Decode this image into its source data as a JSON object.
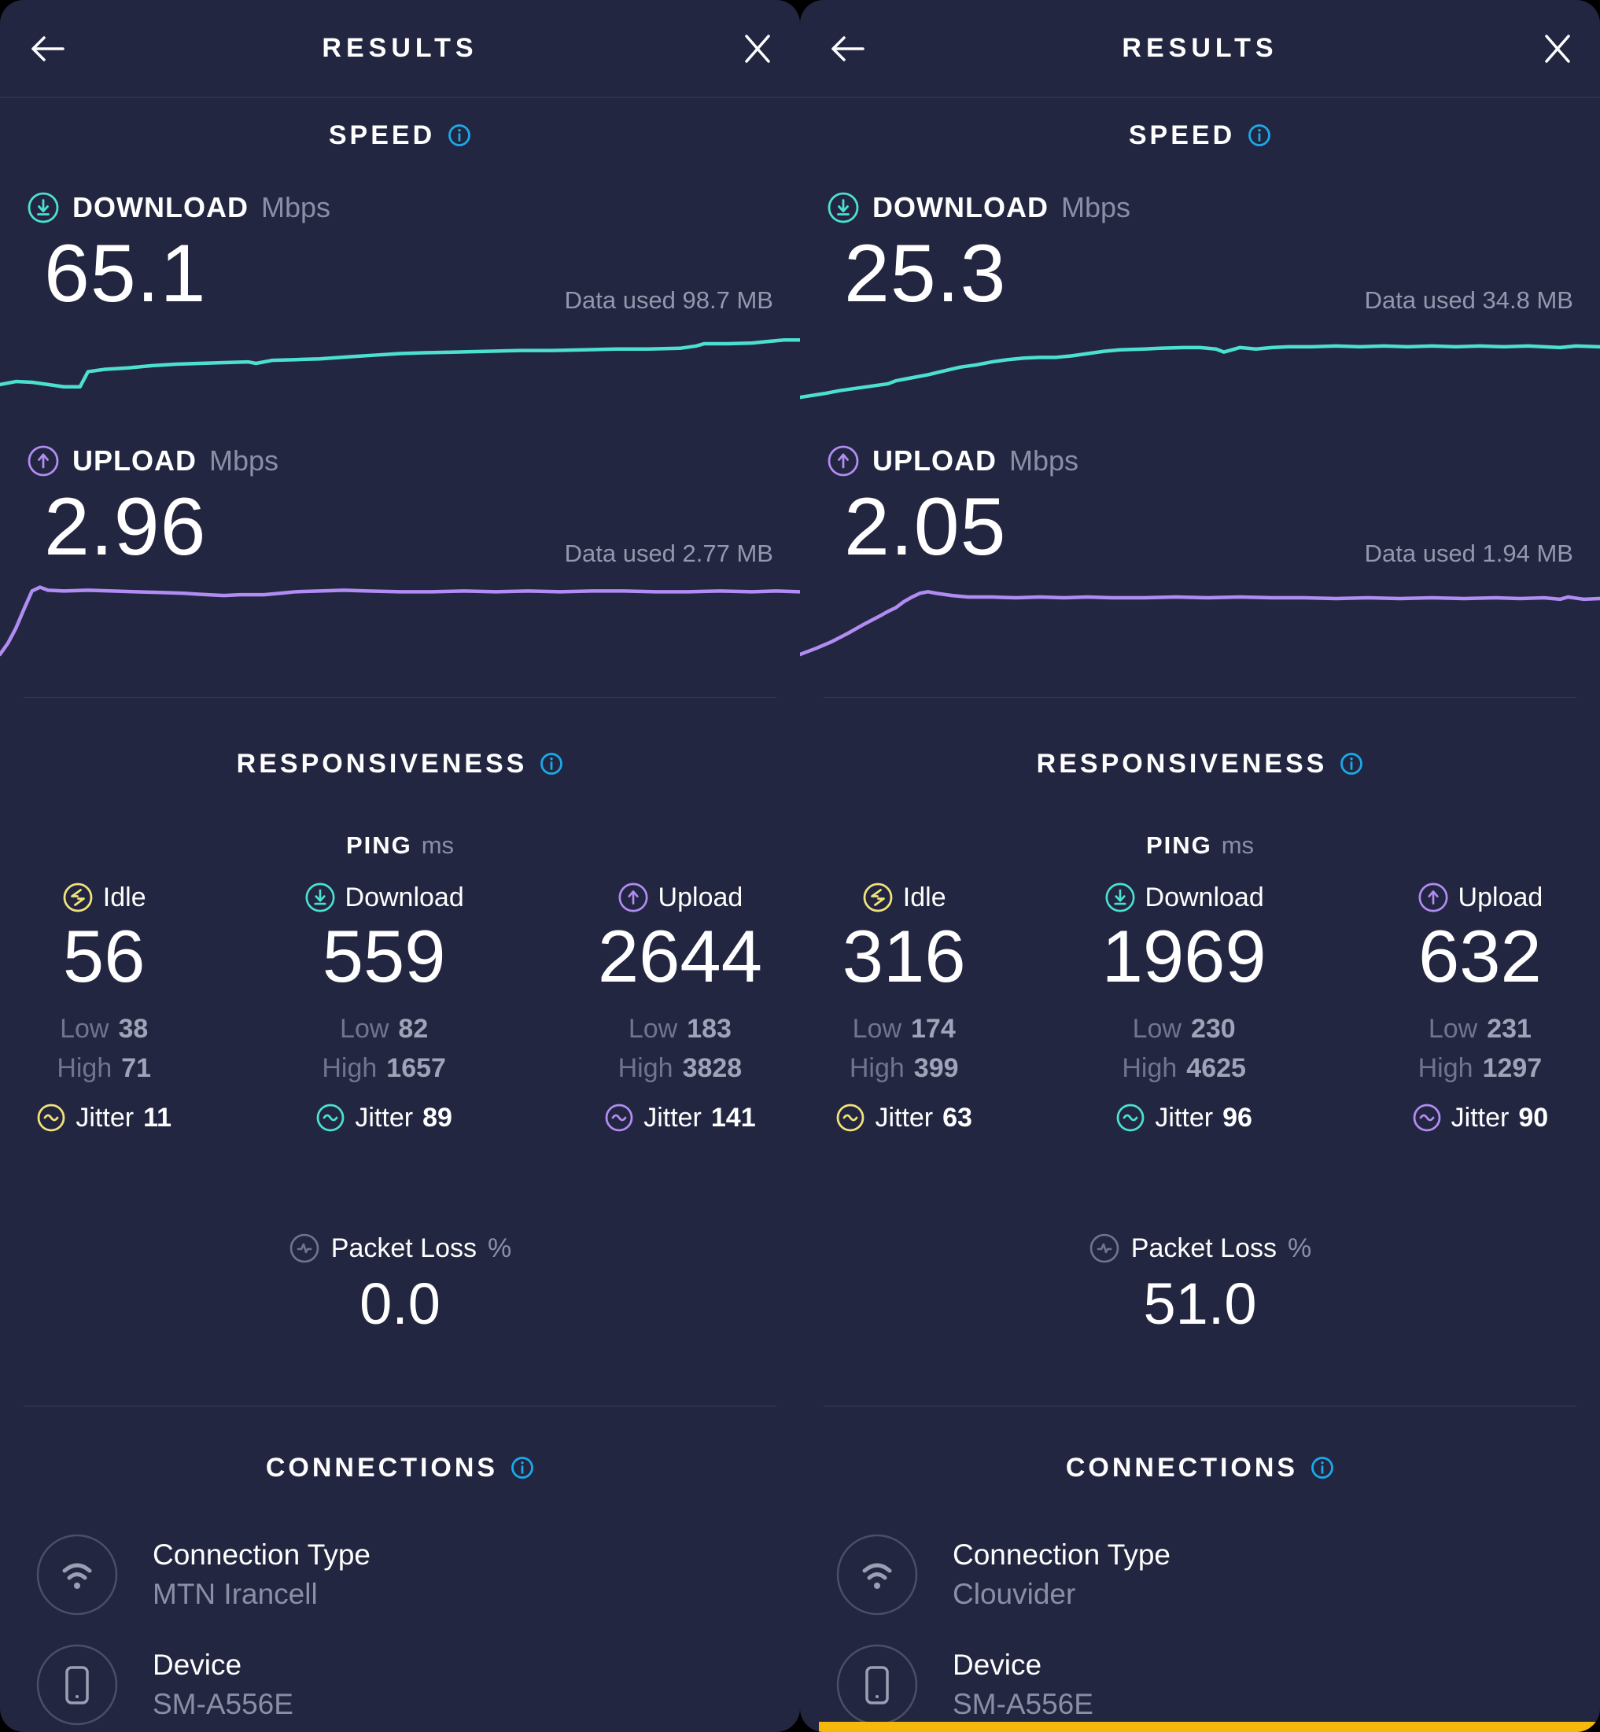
{
  "colors": {
    "background": "#232640",
    "divider": "#3a3d55",
    "teal": "#4be0d0",
    "purple": "#b18cf2",
    "yellow": "#f2e27a",
    "info_blue": "#1da8e8",
    "gray_text": "#8a8fa6",
    "bottom_bar_yellow": "#f6b80a"
  },
  "panels": [
    {
      "header": {
        "title": "RESULTS"
      },
      "speed": {
        "section_title": "SPEED",
        "download": {
          "label": "DOWNLOAD",
          "unit": "Mbps",
          "value": "65.1",
          "data_used": "Data used 98.7 MB"
        },
        "upload": {
          "label": "UPLOAD",
          "unit": "Mbps",
          "value": "2.96",
          "data_used": "Data used 2.77 MB"
        }
      },
      "responsiveness": {
        "section_title": "RESPONSIVENESS",
        "ping_label": "PING",
        "ping_unit": "ms",
        "columns": [
          {
            "label": "Idle",
            "value": "56",
            "low_label": "Low",
            "low_value": "38",
            "high_label": "High",
            "high_value": "71",
            "jitter_label": "Jitter",
            "jitter_value": "11"
          },
          {
            "label": "Download",
            "value": "559",
            "low_label": "Low",
            "low_value": "82",
            "high_label": "High",
            "high_value": "1657",
            "jitter_label": "Jitter",
            "jitter_value": "89"
          },
          {
            "label": "Upload",
            "value": "2644",
            "low_label": "Low",
            "low_value": "183",
            "high_label": "High",
            "high_value": "3828",
            "jitter_label": "Jitter",
            "jitter_value": "141"
          }
        ],
        "packet_loss": {
          "label": "Packet Loss",
          "unit": "%",
          "value": "0.0"
        }
      },
      "connections": {
        "section_title": "CONNECTIONS",
        "rows": [
          {
            "label": "Connection Type",
            "value": "MTN Irancell"
          },
          {
            "label": "Device",
            "value": "SM-A556E"
          }
        ]
      }
    },
    {
      "header": {
        "title": "RESULTS"
      },
      "speed": {
        "section_title": "SPEED",
        "download": {
          "label": "DOWNLOAD",
          "unit": "Mbps",
          "value": "25.3",
          "data_used": "Data used 34.8 MB"
        },
        "upload": {
          "label": "UPLOAD",
          "unit": "Mbps",
          "value": "2.05",
          "data_used": "Data used 1.94 MB"
        }
      },
      "responsiveness": {
        "section_title": "RESPONSIVENESS",
        "ping_label": "PING",
        "ping_unit": "ms",
        "columns": [
          {
            "label": "Idle",
            "value": "316",
            "low_label": "Low",
            "low_value": "174",
            "high_label": "High",
            "high_value": "399",
            "jitter_label": "Jitter",
            "jitter_value": "63"
          },
          {
            "label": "Download",
            "value": "1969",
            "low_label": "Low",
            "low_value": "230",
            "high_label": "High",
            "high_value": "4625",
            "jitter_label": "Jitter",
            "jitter_value": "96"
          },
          {
            "label": "Upload",
            "value": "632",
            "low_label": "Low",
            "low_value": "231",
            "high_label": "High",
            "high_value": "1297",
            "jitter_label": "Jitter",
            "jitter_value": "90"
          }
        ],
        "packet_loss": {
          "label": "Packet Loss",
          "unit": "%",
          "value": "51.0"
        }
      },
      "connections": {
        "section_title": "CONNECTIONS",
        "rows": [
          {
            "label": "Connection Type",
            "value": "Clouvider"
          },
          {
            "label": "Device",
            "value": "SM-A556E"
          }
        ]
      }
    }
  ],
  "chart_data": [
    {
      "type": "line",
      "title": "Download speed over test time (left panel)",
      "final_value_mbps": 65.1,
      "data_used_mb": 98.7,
      "color": "#4be0d0",
      "x": "test progress, normalized 0-100",
      "y": "screen-y normalized 0-100 (0 = fastest, 100 = slowest)",
      "points": [
        [
          0,
          78
        ],
        [
          2,
          74
        ],
        [
          4,
          75
        ],
        [
          6,
          78
        ],
        [
          8,
          81
        ],
        [
          10,
          81
        ],
        [
          11,
          61
        ],
        [
          13,
          58
        ],
        [
          16,
          56
        ],
        [
          19,
          53
        ],
        [
          22,
          51
        ],
        [
          25,
          50
        ],
        [
          28,
          49
        ],
        [
          31,
          48
        ],
        [
          32,
          50
        ],
        [
          34,
          46
        ],
        [
          37,
          45
        ],
        [
          40,
          44
        ],
        [
          44,
          41
        ],
        [
          47,
          39
        ],
        [
          50,
          37
        ],
        [
          53,
          36
        ],
        [
          57,
          35
        ],
        [
          61,
          34
        ],
        [
          65,
          33
        ],
        [
          69,
          33
        ],
        [
          73,
          32
        ],
        [
          77,
          31
        ],
        [
          81,
          31
        ],
        [
          85,
          30
        ],
        [
          87,
          27
        ],
        [
          88,
          24
        ],
        [
          91,
          24
        ],
        [
          94,
          23
        ],
        [
          96,
          21
        ],
        [
          98,
          19
        ],
        [
          100,
          19
        ]
      ]
    },
    {
      "type": "line",
      "title": "Upload speed over test time (left panel)",
      "final_value_mbps": 2.96,
      "data_used_mb": 2.77,
      "color": "#b18cf2",
      "x": "test progress, normalized 0-100",
      "y": "screen-y normalized 0-100 (0 = fastest, 100 = slowest)",
      "points": [
        [
          0,
          100
        ],
        [
          1,
          85
        ],
        [
          2,
          65
        ],
        [
          3,
          40
        ],
        [
          4,
          16
        ],
        [
          5,
          11
        ],
        [
          6,
          15
        ],
        [
          8,
          16
        ],
        [
          11,
          15
        ],
        [
          14,
          16
        ],
        [
          17,
          17
        ],
        [
          20,
          18
        ],
        [
          23,
          19
        ],
        [
          26,
          21
        ],
        [
          28,
          22
        ],
        [
          30,
          21
        ],
        [
          33,
          21
        ],
        [
          35,
          19
        ],
        [
          37,
          17
        ],
        [
          40,
          16
        ],
        [
          43,
          15
        ],
        [
          46,
          16
        ],
        [
          50,
          17
        ],
        [
          54,
          17
        ],
        [
          58,
          16
        ],
        [
          62,
          17
        ],
        [
          66,
          16
        ],
        [
          70,
          17
        ],
        [
          74,
          16
        ],
        [
          78,
          16
        ],
        [
          82,
          17
        ],
        [
          86,
          17
        ],
        [
          90,
          16
        ],
        [
          94,
          17
        ],
        [
          97,
          16
        ],
        [
          100,
          17
        ]
      ]
    },
    {
      "type": "line",
      "title": "Download speed over test time (right panel)",
      "final_value_mbps": 25.3,
      "data_used_mb": 34.8,
      "color": "#4be0d0",
      "x": "test progress, normalized 0-100",
      "y": "screen-y normalized 0-100 (0 = fastest, 100 = slowest)",
      "points": [
        [
          0,
          95
        ],
        [
          3,
          90
        ],
        [
          5,
          86
        ],
        [
          7,
          83
        ],
        [
          9,
          80
        ],
        [
          11,
          77
        ],
        [
          12,
          73
        ],
        [
          14,
          69
        ],
        [
          16,
          65
        ],
        [
          18,
          60
        ],
        [
          20,
          55
        ],
        [
          22,
          52
        ],
        [
          24,
          48
        ],
        [
          26,
          45
        ],
        [
          28,
          43
        ],
        [
          30,
          42
        ],
        [
          32,
          42
        ],
        [
          34,
          40
        ],
        [
          36,
          37
        ],
        [
          38,
          34
        ],
        [
          40,
          32
        ],
        [
          43,
          31
        ],
        [
          45,
          30
        ],
        [
          48,
          29
        ],
        [
          50,
          29
        ],
        [
          52,
          31
        ],
        [
          53,
          35
        ],
        [
          54,
          32
        ],
        [
          55,
          29
        ],
        [
          57,
          31
        ],
        [
          59,
          29
        ],
        [
          61,
          28
        ],
        [
          64,
          28
        ],
        [
          67,
          27
        ],
        [
          70,
          28
        ],
        [
          73,
          27
        ],
        [
          76,
          28
        ],
        [
          79,
          27
        ],
        [
          82,
          28
        ],
        [
          85,
          27
        ],
        [
          88,
          28
        ],
        [
          91,
          27
        ],
        [
          93,
          28
        ],
        [
          95,
          29
        ],
        [
          97,
          27
        ],
        [
          100,
          28
        ]
      ]
    },
    {
      "type": "line",
      "title": "Upload speed over test time (right panel)",
      "final_value_mbps": 2.05,
      "data_used_mb": 1.94,
      "color": "#b18cf2",
      "x": "test progress, normalized 0-100",
      "y": "screen-y normalized 0-100 (0 = fastest, 100 = slowest)",
      "points": [
        [
          0,
          100
        ],
        [
          2,
          92
        ],
        [
          4,
          83
        ],
        [
          6,
          72
        ],
        [
          8,
          60
        ],
        [
          10,
          49
        ],
        [
          11,
          43
        ],
        [
          12,
          38
        ],
        [
          13,
          30
        ],
        [
          14,
          24
        ],
        [
          15,
          19
        ],
        [
          16,
          17
        ],
        [
          17,
          19
        ],
        [
          19,
          22
        ],
        [
          21,
          24
        ],
        [
          24,
          24
        ],
        [
          27,
          25
        ],
        [
          30,
          24
        ],
        [
          33,
          25
        ],
        [
          36,
          24
        ],
        [
          39,
          25
        ],
        [
          43,
          25
        ],
        [
          47,
          24
        ],
        [
          51,
          25
        ],
        [
          55,
          24
        ],
        [
          59,
          25
        ],
        [
          63,
          25
        ],
        [
          67,
          26
        ],
        [
          71,
          25
        ],
        [
          75,
          26
        ],
        [
          79,
          25
        ],
        [
          83,
          26
        ],
        [
          87,
          25
        ],
        [
          90,
          26
        ],
        [
          93,
          25
        ],
        [
          95,
          27
        ],
        [
          96,
          24
        ],
        [
          98,
          27
        ],
        [
          100,
          26
        ]
      ]
    }
  ]
}
